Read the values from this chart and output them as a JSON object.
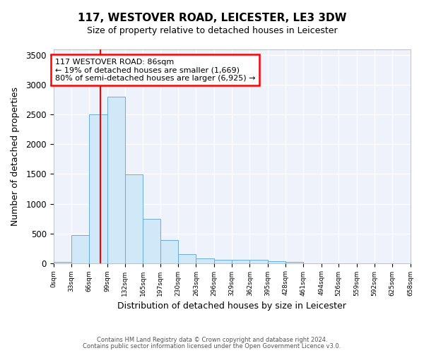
{
  "title": "117, WESTOVER ROAD, LEICESTER, LE3 3DW",
  "subtitle": "Size of property relative to detached houses in Leicester",
  "xlabel": "Distribution of detached houses by size in Leicester",
  "ylabel": "Number of detached properties",
  "annotation_line1": "117 WESTOVER ROAD: 86sqm",
  "annotation_line2": "← 19% of detached houses are smaller (1,669)",
  "annotation_line3": "80% of semi-detached houses are larger (6,925) →",
  "footer_line1": "Contains HM Land Registry data © Crown copyright and database right 2024.",
  "footer_line2": "Contains public sector information licensed under the Open Government Licence v3.0.",
  "bar_edges": [
    0,
    33,
    66,
    99,
    132,
    165,
    197,
    230,
    263,
    296,
    329,
    362,
    395,
    428,
    461,
    494,
    526,
    559,
    592,
    625,
    658
  ],
  "bar_heights": [
    18,
    475,
    2500,
    2800,
    1490,
    740,
    390,
    155,
    75,
    52,
    50,
    52,
    28,
    18,
    0,
    0,
    0,
    0,
    0,
    0
  ],
  "bar_color": "#d0e8f8",
  "bar_edge_color": "#6aace0",
  "vertical_line_x": 86,
  "ylim": [
    0,
    3600
  ],
  "xlim": [
    0,
    658
  ],
  "tick_positions": [
    0,
    33,
    66,
    99,
    132,
    165,
    197,
    230,
    263,
    296,
    329,
    362,
    395,
    428,
    461,
    494,
    526,
    559,
    592,
    625,
    658
  ],
  "tick_labels": [
    "0sqm",
    "33sqm",
    "66sqm",
    "99sqm",
    "132sqm",
    "165sqm",
    "197sqm",
    "230sqm",
    "263sqm",
    "296sqm",
    "329sqm",
    "362sqm",
    "395sqm",
    "428sqm",
    "461sqm",
    "494sqm",
    "526sqm",
    "559sqm",
    "592sqm",
    "625sqm",
    "658sqm"
  ],
  "ytick_positions": [
    0,
    500,
    1000,
    1500,
    2000,
    2500,
    3000,
    3500
  ],
  "background_color": "#eef2fb",
  "ann_x": 3,
  "ann_y": 3450,
  "ann_fontsize": 8.0,
  "title_fontsize": 11,
  "subtitle_fontsize": 9,
  "xlabel_fontsize": 9,
  "ylabel_fontsize": 9,
  "xtick_fontsize": 6.5,
  "ytick_fontsize": 8.5,
  "footer_fontsize": 6.0
}
